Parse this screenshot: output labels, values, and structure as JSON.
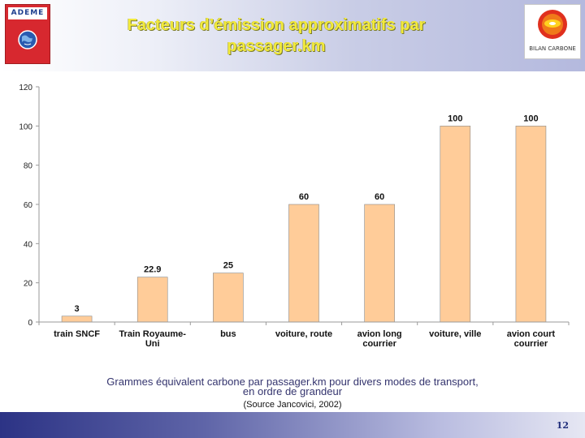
{
  "header": {
    "title_line1": "Facteurs d’émission approximatifs par",
    "title_line2": "passager.km",
    "left_logo_text": "ADEME",
    "right_logo_text": "BILAN CARBONE"
  },
  "chart_data": {
    "type": "bar",
    "categories": [
      [
        "train SNCF"
      ],
      [
        "Train Royaume-",
        "Uni"
      ],
      [
        "bus"
      ],
      [
        "voiture, route"
      ],
      [
        "avion long",
        "courrier"
      ],
      [
        "voiture, ville"
      ],
      [
        "avion court",
        "courrier"
      ]
    ],
    "values": [
      3,
      22.9,
      25,
      60,
      60,
      100,
      100
    ],
    "data_labels": [
      "3",
      "22.9",
      "25",
      "60",
      "60",
      "100",
      "100"
    ],
    "ylim": [
      0,
      120
    ],
    "y_ticks": [
      0,
      20,
      40,
      60,
      80,
      100,
      120
    ],
    "bar_color": "#ffcc99",
    "bar_edge_color": "#8a8a8a",
    "grid": false
  },
  "caption": {
    "line1": "Grammes équivalent carbone par passager.km pour divers modes de transport,",
    "line2": "en ordre de grandeur",
    "source": "(Source Jancovici, 2002)"
  },
  "footer": {
    "page_number": "12"
  }
}
